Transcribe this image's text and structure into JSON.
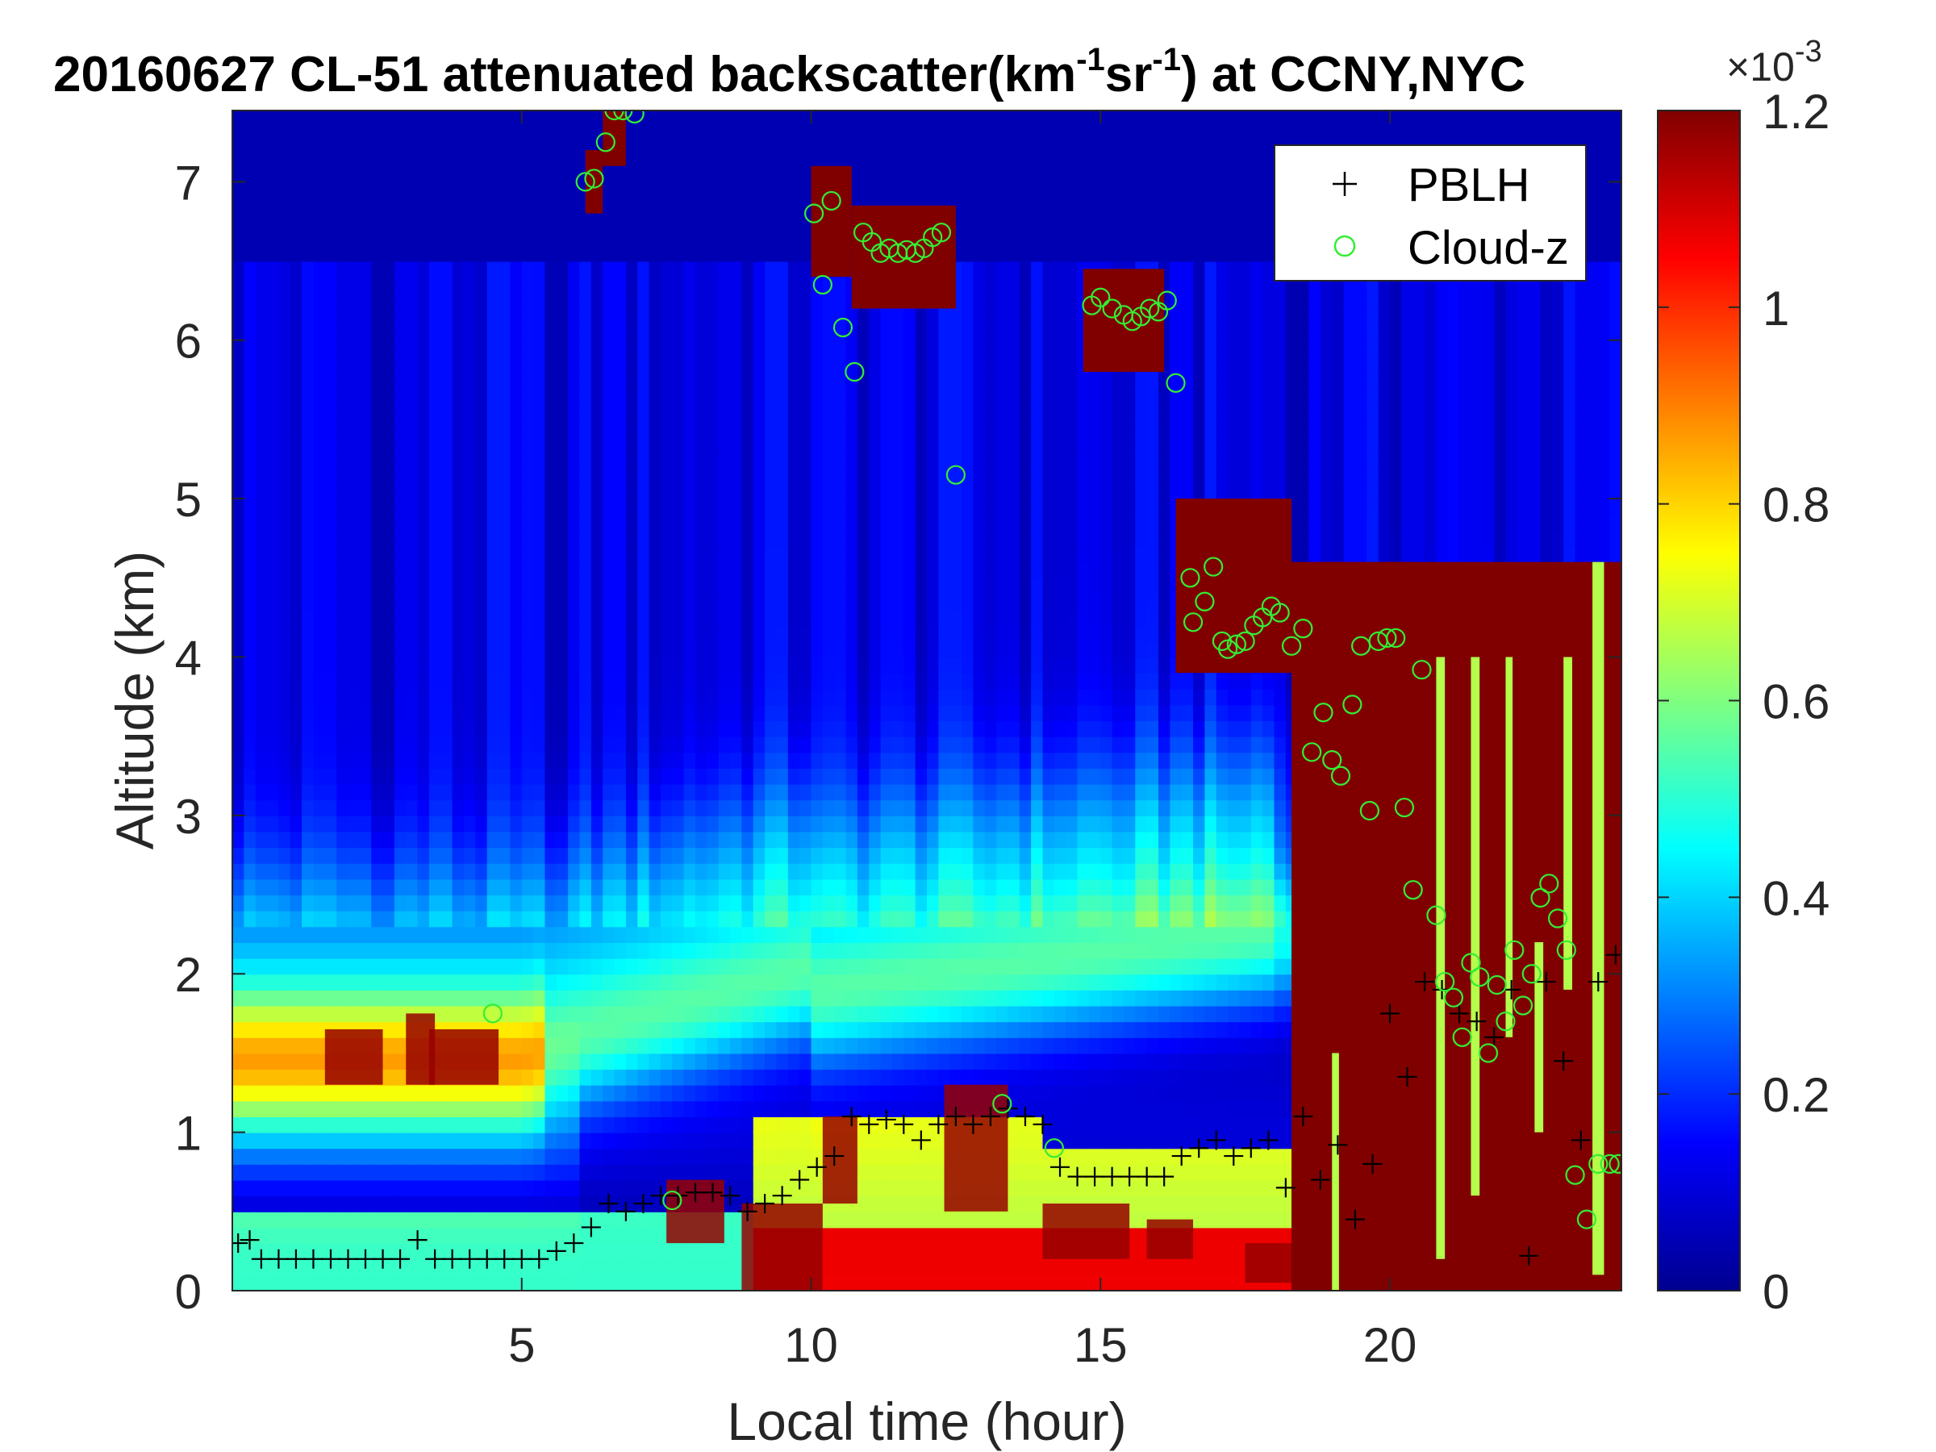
{
  "chart_data": {
    "type": "heatmap",
    "title": {
      "main": "20160627  CL-51 attenuated backscatter(km",
      "sup1": "-1",
      "mid": "sr",
      "sup2": "-1",
      "end": ") at CCNY,NYC"
    },
    "xlabel": "Local time (hour)",
    "ylabel": "Altitude (km)",
    "xlim": [
      0,
      24
    ],
    "ylim": [
      0,
      7.45
    ],
    "xticks": [
      5,
      10,
      15,
      20
    ],
    "yticks": [
      0,
      1,
      2,
      3,
      4,
      5,
      6,
      7
    ],
    "colorbar": {
      "colormap": "jet",
      "range": [
        0,
        1.2
      ],
      "ticks": [
        "0",
        "0.2",
        "0.4",
        "0.6",
        "0.8",
        "1",
        "1.2"
      ],
      "exponent_label": "×10",
      "exponent_sup": "-3"
    },
    "legend": {
      "position": "top-right",
      "entries": [
        {
          "marker": "+",
          "label": "PBLH",
          "color": "#000000"
        },
        {
          "marker": "o",
          "label": "Cloud-z",
          "color": "#33ee33"
        }
      ]
    },
    "series": [
      {
        "name": "PBLH",
        "marker": "+",
        "color": "#000000",
        "x": [
          0.1,
          0.3,
          0.5,
          0.8,
          1.1,
          1.4,
          1.7,
          2.0,
          2.3,
          2.6,
          2.9,
          3.2,
          3.5,
          3.8,
          4.1,
          4.4,
          4.7,
          5.0,
          5.3,
          5.6,
          5.9,
          6.2,
          6.5,
          6.8,
          7.1,
          7.4,
          7.7,
          8.0,
          8.3,
          8.6,
          8.9,
          9.2,
          9.5,
          9.8,
          10.1,
          10.4,
          10.7,
          11.0,
          11.3,
          11.6,
          11.9,
          12.2,
          12.5,
          12.8,
          13.1,
          13.4,
          13.7,
          14.0,
          14.3,
          14.6,
          14.9,
          15.2,
          15.5,
          15.8,
          16.1,
          16.4,
          16.7,
          17.0,
          17.3,
          17.6,
          17.9,
          18.2,
          18.5,
          18.8,
          19.1,
          19.4,
          19.7,
          20.0,
          20.3,
          20.6,
          20.9,
          21.2,
          21.5,
          21.8,
          22.1,
          22.4,
          22.7,
          23.0,
          23.3,
          23.6,
          23.9
        ],
        "y": [
          0.3,
          0.32,
          0.2,
          0.2,
          0.2,
          0.2,
          0.2,
          0.2,
          0.2,
          0.2,
          0.2,
          0.32,
          0.2,
          0.2,
          0.2,
          0.2,
          0.2,
          0.2,
          0.2,
          0.25,
          0.3,
          0.4,
          0.55,
          0.5,
          0.55,
          0.6,
          0.6,
          0.62,
          0.62,
          0.6,
          0.5,
          0.55,
          0.6,
          0.7,
          0.78,
          0.85,
          1.1,
          1.05,
          1.08,
          1.05,
          0.95,
          1.05,
          1.1,
          1.05,
          1.1,
          1.15,
          1.1,
          1.05,
          0.78,
          0.72,
          0.72,
          0.72,
          0.72,
          0.72,
          0.72,
          0.85,
          0.9,
          0.95,
          0.85,
          0.9,
          0.95,
          0.65,
          1.1,
          0.7,
          0.92,
          0.45,
          0.8,
          1.75,
          1.35,
          1.95,
          1.9,
          1.75,
          1.7,
          1.6,
          1.9,
          0.22,
          1.95,
          1.45,
          0.95,
          1.95,
          2.12
        ]
      },
      {
        "name": "Cloud-z",
        "marker": "o",
        "color": "#33ee33",
        "x": [
          4.5,
          6.1,
          6.25,
          6.45,
          6.6,
          6.75,
          6.95,
          7.6,
          10.05,
          10.2,
          10.35,
          10.55,
          10.75,
          10.9,
          11.05,
          11.2,
          11.35,
          11.5,
          11.65,
          11.8,
          11.95,
          12.1,
          12.25,
          12.5,
          13.3,
          14.2,
          14.85,
          15.0,
          15.2,
          15.4,
          15.55,
          15.7,
          15.85,
          16.0,
          16.15,
          16.3,
          16.55,
          16.6,
          16.8,
          16.95,
          17.1,
          17.2,
          17.35,
          17.5,
          17.65,
          17.8,
          17.95,
          18.1,
          18.3,
          18.5,
          18.65,
          18.85,
          19.0,
          19.15,
          19.35,
          19.5,
          19.65,
          19.8,
          19.95,
          20.1,
          20.25,
          20.4,
          20.55,
          20.8,
          20.95,
          21.1,
          21.25,
          21.4,
          21.55,
          21.7,
          21.85,
          22.0,
          22.15,
          22.3,
          22.45,
          22.6,
          22.75,
          22.9,
          23.05,
          23.2,
          23.4,
          23.6,
          23.8,
          23.95
        ],
        "y": [
          1.75,
          7.0,
          7.02,
          7.25,
          7.45,
          7.45,
          7.43,
          0.57,
          6.8,
          6.35,
          6.88,
          6.08,
          5.8,
          6.68,
          6.62,
          6.55,
          6.58,
          6.55,
          6.57,
          6.55,
          6.58,
          6.65,
          6.68,
          5.15,
          1.18,
          0.9,
          6.22,
          6.27,
          6.2,
          6.16,
          6.12,
          6.15,
          6.2,
          6.18,
          6.25,
          5.73,
          4.5,
          4.22,
          4.35,
          4.57,
          4.1,
          4.05,
          4.08,
          4.1,
          4.2,
          4.25,
          4.32,
          4.28,
          4.07,
          4.18,
          3.4,
          3.65,
          3.35,
          3.25,
          3.7,
          4.07,
          3.03,
          4.1,
          4.12,
          4.12,
          3.05,
          2.53,
          3.92,
          2.37,
          1.95,
          1.85,
          1.6,
          2.07,
          1.98,
          1.5,
          1.93,
          1.7,
          2.15,
          1.8,
          2.0,
          2.48,
          2.57,
          2.35,
          2.15,
          0.73,
          0.45,
          0.8,
          0.8,
          0.8
        ]
      }
    ]
  }
}
